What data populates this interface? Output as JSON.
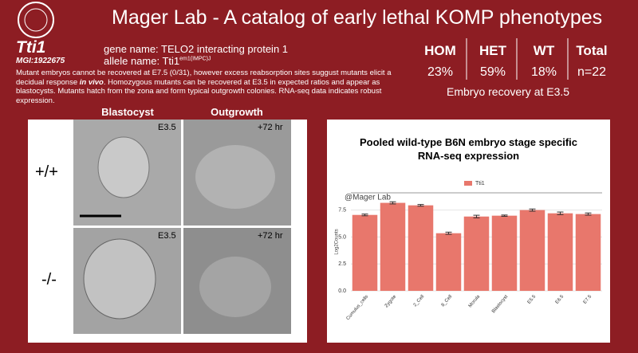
{
  "header": {
    "title": "Mager Lab - A catalog of early lethal KOMP phenotypes"
  },
  "gene": {
    "symbol": "Tti1",
    "mgi": "MGI:1922675",
    "gene_name": "gene name: TELO2 interacting protein 1",
    "allele_prefix": "allele name: Tti1",
    "allele_superscript": "em1(IMPC)J",
    "description_before": "Mutant embryos cannot be recovered at E7.5 (0/31), however excess reabsorption sites suggust mutants elicit a decidual response ",
    "description_emphasis": "in vivo",
    "description_after": ". Homozygous mutants can be recovered at E3.5 in expected ratios and appear as blastocysts. Mutants hatch from the zona and form typical outgrowth colonies. RNA-seq data indicates robust expression."
  },
  "stats": {
    "columns": [
      {
        "label": "HOM",
        "value": "23%"
      },
      {
        "label": "HET",
        "value": "59%"
      },
      {
        "label": "WT",
        "value": "18%"
      },
      {
        "label": "Total",
        "value": "n=22"
      }
    ],
    "caption": "Embryo recovery at E3.5"
  },
  "images": {
    "column_headers": [
      "Blastocyst",
      "Outgrowth"
    ],
    "row_labels": [
      "+/+",
      "-/-"
    ],
    "stage_labels": [
      "E3.5",
      "+72 hr"
    ]
  },
  "chart_data": {
    "type": "bar",
    "title": "Pooled wild-type B6N embryo stage specific RNA-seq expression",
    "watermark": "@Mager Lab",
    "y_label": "Log2Counts",
    "categories": [
      "Cumulus_cells",
      "Zygote",
      "2_Cell",
      "8_Cell",
      "Morula",
      "Blastocyst",
      "E5.5",
      "E6.5",
      "E7.5"
    ],
    "series": [
      {
        "name": "Tti1",
        "color": "#e8776c",
        "values": [
          7.05,
          8.17,
          7.94,
          5.35,
          6.9,
          6.98,
          7.5,
          7.2,
          7.13
        ],
        "errors": [
          0.08,
          0.1,
          0.08,
          0.1,
          0.12,
          0.06,
          0.1,
          0.12,
          0.1
        ]
      }
    ],
    "ylim": [
      0,
      9.1
    ],
    "yticks": [
      {
        "value": 0,
        "label": "0.0"
      },
      2.5,
      {
        "value": 5,
        "label": "5.0"
      },
      7.5
    ],
    "grid": true
  }
}
